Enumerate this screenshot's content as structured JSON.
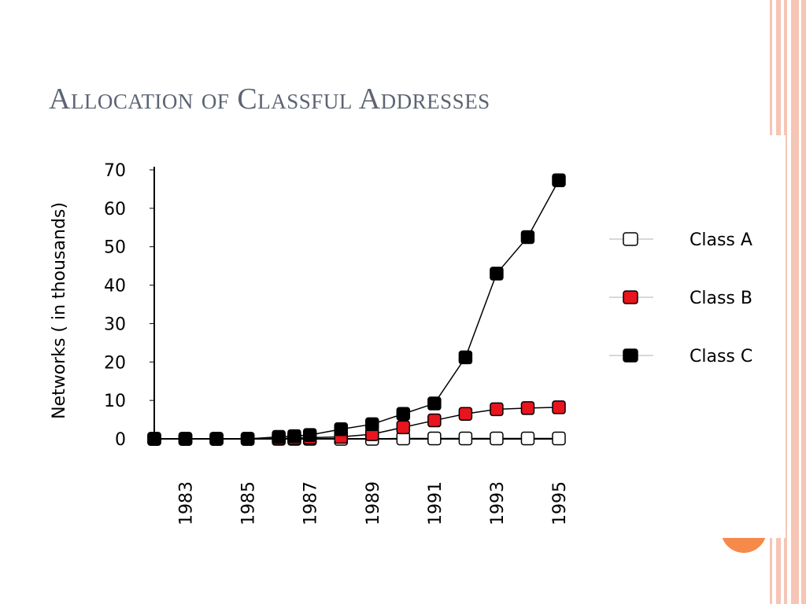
{
  "slide": {
    "title": "Allocation of Classful Addresses"
  },
  "colors": {
    "accent": "#f58a4a",
    "border_light": "#f6c5b5",
    "title": "#5c6474",
    "class_a_fill": "#ffffff",
    "class_b_fill": "#e8141e",
    "class_c_fill": "#000000"
  },
  "chart_data": {
    "type": "line",
    "title": "",
    "xlabel": "",
    "ylabel": "Networks ( in thousands)",
    "ylim": [
      0,
      70
    ],
    "xlim": [
      1982,
      1995
    ],
    "yticks": [
      "0",
      "10",
      "20",
      "30",
      "40",
      "50",
      "60",
      "70"
    ],
    "xticks": [
      "1983",
      "1985",
      "1987",
      "1989",
      "1991",
      "1993",
      "1995"
    ],
    "legend_position": "right",
    "grid": false,
    "series": [
      {
        "name": "Class A",
        "marker": "white-square",
        "x": [
          1982,
          1983,
          1984,
          1985,
          1986,
          1986.5,
          1987,
          1988,
          1989,
          1990,
          1991,
          1992,
          1993,
          1994,
          1995
        ],
        "values": [
          0,
          0,
          0,
          0,
          0,
          0,
          0,
          0,
          0,
          0.1,
          0.1,
          0.1,
          0.1,
          0.1,
          0.1
        ]
      },
      {
        "name": "Class B",
        "marker": "red-square",
        "x": [
          1982,
          1983,
          1984,
          1985,
          1986,
          1986.5,
          1987,
          1988,
          1989,
          1990,
          1991,
          1992,
          1993,
          1994,
          1995
        ],
        "values": [
          0,
          0,
          0,
          0,
          0.1,
          0.2,
          0.3,
          0.5,
          1.2,
          3,
          4.8,
          6.5,
          7.7,
          8,
          8.2
        ]
      },
      {
        "name": "Class C",
        "marker": "black-square",
        "x": [
          1982,
          1983,
          1984,
          1985,
          1986,
          1986.5,
          1987,
          1988,
          1989,
          1990,
          1991,
          1992,
          1993,
          1994,
          1995
        ],
        "values": [
          0,
          0,
          0,
          0,
          0.5,
          0.7,
          1,
          2.5,
          3.8,
          6.5,
          9.2,
          21.2,
          43,
          52.5,
          67.3
        ]
      }
    ]
  }
}
